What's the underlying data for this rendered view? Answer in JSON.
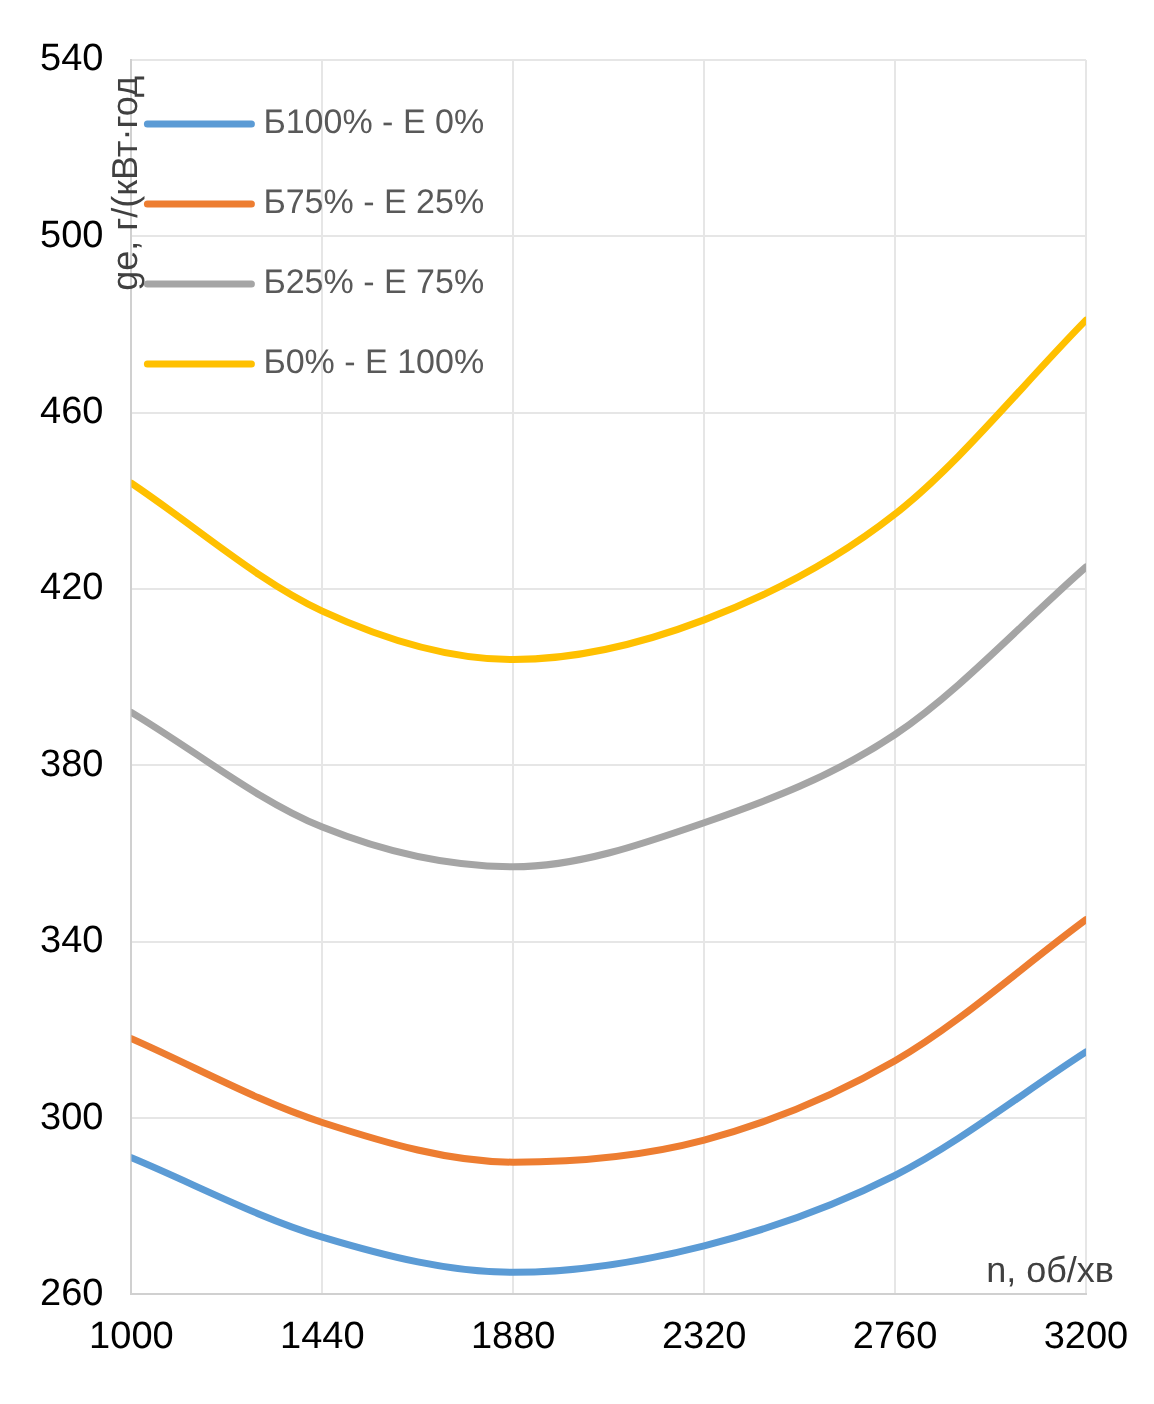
{
  "chart_data": {
    "type": "line",
    "xlabel": "n, об/хв",
    "ylabel": "ge, г/(кВт·год",
    "x": [
      1000,
      1440,
      1880,
      2320,
      2760,
      3200
    ],
    "series": [
      {
        "name": "Б100% - Е 0%",
        "color": "#5b9bd5",
        "values": [
          291,
          273,
          265,
          271,
          287,
          315
        ]
      },
      {
        "name": "Б75% - Е 25%",
        "color": "#ed7d31",
        "values": [
          318,
          299,
          290,
          295,
          313,
          345
        ]
      },
      {
        "name": "Б25% - Е 75%",
        "color": "#a5a5a5",
        "values": [
          392,
          366,
          357,
          367,
          387,
          425
        ]
      },
      {
        "name": "Б0% - Е 100%",
        "color": "#ffc000",
        "values": [
          444,
          415,
          404,
          413,
          437,
          481
        ]
      }
    ],
    "xlim": [
      1000,
      3200
    ],
    "xticks": [
      1000,
      1440,
      1880,
      2320,
      2760,
      3200
    ],
    "ylim": [
      260,
      540
    ],
    "yticks": [
      260,
      300,
      340,
      380,
      420,
      460,
      500,
      540
    ],
    "grid": true,
    "legend": "top left",
    "marker": "none",
    "line_style": "solid"
  }
}
